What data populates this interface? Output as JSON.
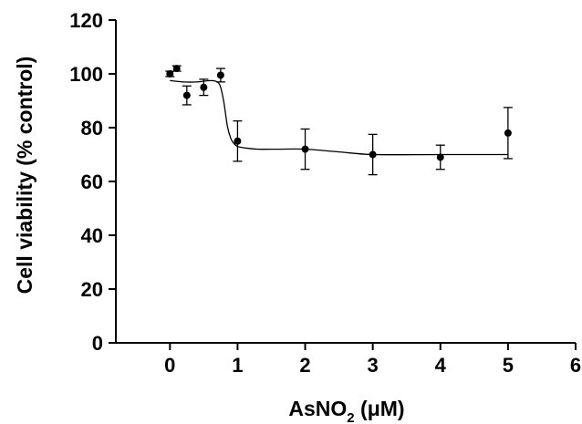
{
  "chart_data": {
    "type": "scatter",
    "xlabel": "AsNO",
    "xlabel_sub": "2",
    "xlabel_unit": " (μM)",
    "ylabel": "Cell viability (% control)",
    "xlim": [
      -0.8,
      6
    ],
    "ylim": [
      0,
      120
    ],
    "xticks": [
      "0",
      "1",
      "2",
      "3",
      "4",
      "5",
      "6"
    ],
    "yticks": [
      "0",
      "20",
      "40",
      "60",
      "80",
      "100",
      "120"
    ],
    "grid": false,
    "legend": "none",
    "series": [
      {
        "x": [
          0,
          0.1,
          0.25,
          0.5,
          0.75,
          1,
          2,
          3,
          4,
          5
        ],
        "y": [
          100,
          102,
          92,
          95,
          99.5,
          75,
          72,
          70,
          69,
          78
        ],
        "yerr": [
          1,
          1,
          3.5,
          3,
          2.5,
          7.5,
          7.5,
          7.5,
          4.5,
          9.5
        ]
      }
    ],
    "fit_curve": {
      "x": [
        0,
        0.2,
        0.4,
        0.6,
        0.7,
        0.75,
        0.8,
        0.85,
        0.9,
        0.95,
        1,
        1.1,
        1.3,
        1.6,
        2,
        2.5,
        3,
        4,
        5
      ],
      "y": [
        97.5,
        97,
        97,
        97.5,
        97,
        95,
        89,
        80.5,
        76,
        74,
        73,
        72.5,
        72,
        72,
        72,
        71,
        70,
        70,
        70
      ]
    }
  }
}
